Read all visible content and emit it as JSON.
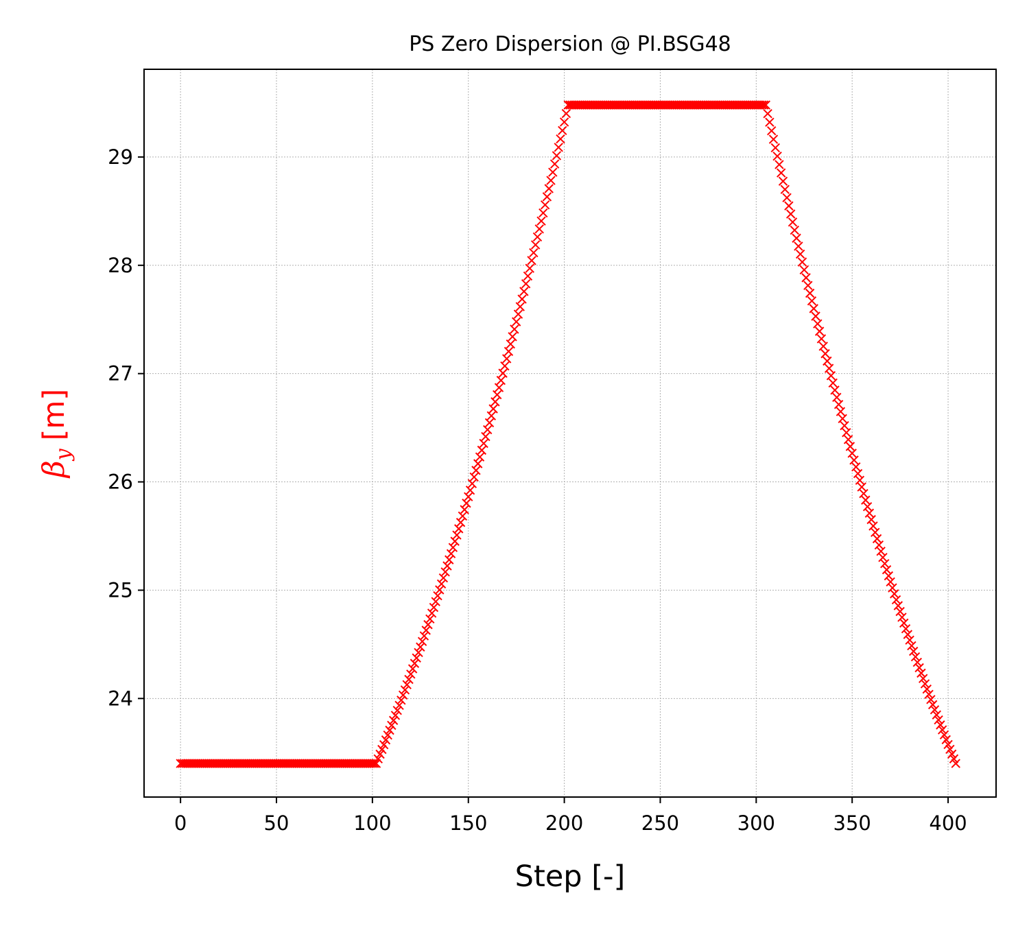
{
  "chart_data": {
    "type": "scatter",
    "title": "PS Zero Dispersion @ PI.BSG48",
    "xlabel": "Step [-]",
    "ylabel": {
      "symbol": "β",
      "subscript": "y",
      "unit": "[m]"
    },
    "xlim": [
      -19,
      425
    ],
    "ylim": [
      23.09,
      29.81
    ],
    "xticks": [
      0,
      50,
      100,
      150,
      200,
      250,
      300,
      350,
      400
    ],
    "yticks": [
      24,
      25,
      26,
      27,
      28,
      29
    ],
    "grid": true,
    "marker": "x",
    "colors": {
      "series": "#ff0000",
      "ylabel": "#ff0000",
      "grid": "#b0b0b0",
      "axes": "#000000"
    },
    "series": [
      {
        "segments": [
          {
            "x_start": 0,
            "x_end": 102,
            "y_start": 23.4,
            "y_end": 23.4,
            "shape": "flat"
          },
          {
            "x_start": 102,
            "x_end": 202,
            "y_start": 23.4,
            "y_end": 29.48,
            "shape": "ramp-up-convex"
          },
          {
            "x_start": 202,
            "x_end": 305,
            "y_start": 29.48,
            "y_end": 29.48,
            "shape": "flat"
          },
          {
            "x_start": 305,
            "x_end": 404,
            "y_start": 29.48,
            "y_end": 23.4,
            "shape": "ramp-down-concave"
          }
        ]
      }
    ]
  }
}
